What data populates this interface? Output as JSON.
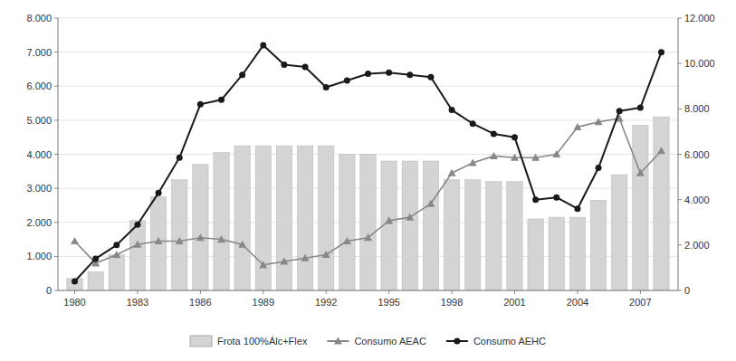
{
  "chart_data": {
    "type": "bar",
    "x": [
      1980,
      1981,
      1982,
      1983,
      1984,
      1985,
      1986,
      1987,
      1988,
      1989,
      1990,
      1991,
      1992,
      1993,
      1994,
      1995,
      1996,
      1997,
      1998,
      1999,
      2000,
      2001,
      2002,
      2003,
      2004,
      2005,
      2006,
      2007,
      2008
    ],
    "xlim": [
      1979.2,
      2008.8
    ],
    "xticks": [
      1980,
      1983,
      1986,
      1989,
      1992,
      1995,
      1998,
      2001,
      2004,
      2007
    ],
    "ylim": [
      0,
      8000
    ],
    "yticks": [
      0,
      {
        "value": 1000,
        "label": "1.000"
      },
      {
        "value": 2000,
        "label": "2.000"
      },
      {
        "value": 3000,
        "label": "3.000"
      },
      {
        "value": 4000,
        "label": "4.000"
      },
      {
        "value": 5000,
        "label": "5.000"
      },
      {
        "value": 6000,
        "label": "6.000"
      },
      {
        "value": 7000,
        "label": "7.000"
      },
      {
        "value": 8000,
        "label": "8.000"
      }
    ],
    "y2lim": [
      0,
      12000
    ],
    "y2ticks": [
      0,
      {
        "value": 2000,
        "label": "2.000"
      },
      {
        "value": 4000,
        "label": "4.000"
      },
      {
        "value": 6000,
        "label": "6.000"
      },
      {
        "value": 8000,
        "label": "8.000"
      },
      {
        "value": 10000,
        "label": "10.000"
      },
      {
        "value": 12000,
        "label": "12.000"
      }
    ],
    "grid": true,
    "legend": "bottom",
    "series": [
      {
        "name": "Frota 100%Álc+Flex",
        "type": "bar",
        "color": "#d4d4d4",
        "values": [
          350,
          550,
          1050,
          2050,
          2750,
          3250,
          3700,
          4050,
          4250,
          4250,
          4250,
          4250,
          4250,
          4000,
          4000,
          3800,
          3800,
          3800,
          3250,
          3250,
          3200,
          3200,
          2100,
          2150,
          2150,
          2650,
          3400,
          4850,
          5100
        ]
      },
      {
        "name": "Consumo AEAC",
        "type": "line",
        "color": "#888888",
        "marker": "triangle",
        "values": [
          1450,
          800,
          1050,
          1350,
          1450,
          1450,
          1550,
          1500,
          1350,
          750,
          850,
          950,
          1050,
          1450,
          1550,
          2050,
          2150,
          2550,
          3450,
          3750,
          3950,
          3900,
          3900,
          4000,
          4800,
          4950,
          5050,
          3450,
          4100
        ]
      },
      {
        "name": "Consumo AEHC",
        "type": "line",
        "color": "#1a1a1a",
        "marker": "circle",
        "axis": "y2",
        "values": [
          400,
          1400,
          2000,
          2900,
          4300,
          5850,
          8200,
          8400,
          9500,
          10800,
          9950,
          9850,
          8950,
          9250,
          9550,
          9600,
          9500,
          9400,
          7950,
          7350,
          6900,
          6750,
          4000,
          4100,
          3600,
          5400,
          7900,
          8050,
          10500
        ]
      }
    ]
  }
}
